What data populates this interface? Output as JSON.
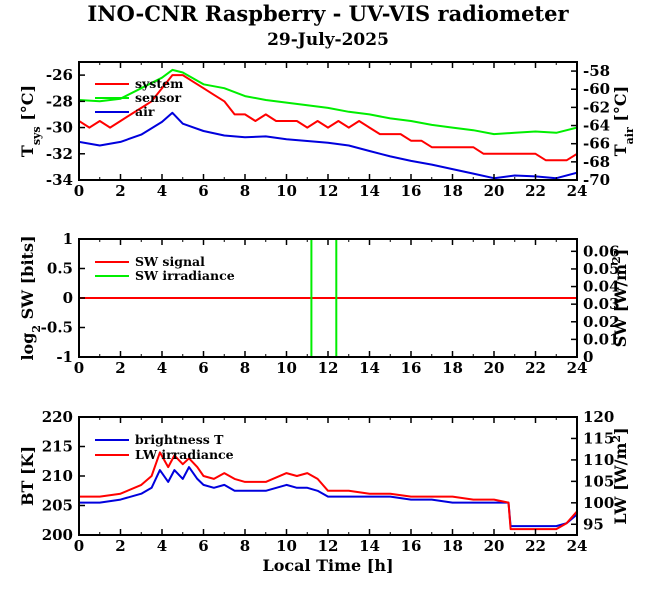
{
  "title": "INO-CNR Raspberry - UV-VIS radiometer",
  "subtitle": "29-July-2025",
  "colors": {
    "red": "#ff0000",
    "green": "#00ee00",
    "blue": "#0000dd",
    "frame": "#000000"
  },
  "chart_data": [
    {
      "type": "line",
      "xlabel": "",
      "ylabel": "T_sys [°C]",
      "ylabel_main": "T",
      "ylabel_sub": "sys",
      "ylabel_rest": " [°C]",
      "y2label": "T_air [°C]",
      "y2label_main": "T",
      "y2label_sub": "air",
      "y2label_rest": " [°C]",
      "xlim": [
        0,
        24
      ],
      "ylim": [
        -34,
        -25
      ],
      "y2lim": [
        -70,
        -57
      ],
      "xticks": [
        0,
        2,
        4,
        6,
        8,
        10,
        12,
        14,
        16,
        18,
        20,
        22,
        24
      ],
      "yticks": [
        -34,
        -32,
        -30,
        -28,
        -26
      ],
      "y2ticks": [
        -70,
        -68,
        -66,
        -64,
        -62,
        -60,
        -58
      ],
      "legend_position": "top-left",
      "series": [
        {
          "name": "system",
          "color": "#ff0000",
          "axis": "left",
          "x": [
            0,
            0.5,
            1,
            1.5,
            2,
            2.5,
            3,
            3.5,
            4,
            4.5,
            5,
            5.5,
            6,
            6.5,
            7,
            7.5,
            8,
            8.5,
            9,
            9.5,
            10,
            10.5,
            11,
            11.5,
            12,
            12.5,
            13,
            13.5,
            14,
            14.5,
            15,
            15.5,
            16,
            16.5,
            17,
            17.5,
            18,
            18.5,
            19,
            19.5,
            20,
            20.5,
            21,
            21.5,
            22,
            22.5,
            23,
            23.5,
            24
          ],
          "values": [
            -29.5,
            -30,
            -29.5,
            -30,
            -29.5,
            -29,
            -28.5,
            -28,
            -27,
            -26,
            -26,
            -26.5,
            -27,
            -27.5,
            -28,
            -29,
            -29,
            -29.5,
            -29,
            -29.5,
            -29.5,
            -29.5,
            -30,
            -29.5,
            -30,
            -29.5,
            -30,
            -29.5,
            -30,
            -30.5,
            -30.5,
            -30.5,
            -31,
            -31,
            -31.5,
            -31.5,
            -31.5,
            -31.5,
            -31.5,
            -32,
            -32,
            -32,
            -32,
            -32,
            -32,
            -32.5,
            -32.5,
            -32.5,
            -32
          ]
        },
        {
          "name": "sensor",
          "color": "#00ee00",
          "axis": "left",
          "x": [
            0,
            1,
            2,
            3,
            4,
            4.5,
            5,
            6,
            7,
            8,
            9,
            10,
            11,
            12,
            13,
            14,
            15,
            16,
            17,
            18,
            19,
            20,
            21,
            22,
            23,
            24
          ],
          "values": [
            -27.9,
            -28.0,
            -27.8,
            -27.0,
            -26.2,
            -25.6,
            -25.8,
            -26.7,
            -27.0,
            -27.6,
            -27.9,
            -28.1,
            -28.3,
            -28.5,
            -28.8,
            -29.0,
            -29.3,
            -29.5,
            -29.8,
            -30.0,
            -30.2,
            -30.5,
            -30.4,
            -30.3,
            -30.4,
            -30.0
          ]
        },
        {
          "name": "air",
          "color": "#0000dd",
          "axis": "right",
          "x": [
            0,
            1,
            2,
            3,
            4,
            4.5,
            5,
            6,
            7,
            8,
            9,
            10,
            11,
            12,
            13,
            14,
            15,
            16,
            17,
            18,
            19,
            20,
            21,
            22,
            23,
            24
          ],
          "values": [
            -65.8,
            -66.2,
            -65.8,
            -65.0,
            -63.6,
            -62.6,
            -63.8,
            -64.6,
            -65.1,
            -65.3,
            -65.2,
            -65.5,
            -65.7,
            -65.9,
            -66.2,
            -66.8,
            -67.4,
            -67.9,
            -68.3,
            -68.8,
            -69.3,
            -69.8,
            -69.5,
            -69.6,
            -69.8,
            -69.2
          ]
        }
      ]
    },
    {
      "type": "line",
      "xlabel": "",
      "ylabel": "log_2 SW [bits]",
      "ylabel_main": "log",
      "ylabel_sub": "2",
      "ylabel_rest": " SW [bits]",
      "y2label": "SW [W/m^2]",
      "y2label_main": "SW [W/m",
      "y2label_sup": "2",
      "y2label_rest": "]",
      "xlim": [
        0,
        24
      ],
      "ylim": [
        -1,
        1
      ],
      "y2lim": [
        0,
        0.067
      ],
      "xticks": [
        0,
        2,
        4,
        6,
        8,
        10,
        12,
        14,
        16,
        18,
        20,
        22,
        24
      ],
      "yticks": [
        -1,
        -0.5,
        0,
        0.5,
        1
      ],
      "yticklabels": [
        "-1",
        "-0.5",
        "0",
        "0.5",
        "1"
      ],
      "y2ticks": [
        0,
        0.01,
        0.02,
        0.03,
        0.04,
        0.05,
        0.06
      ],
      "y2ticklabels": [
        "0",
        "0.01",
        "0.02",
        "0.03",
        "0.04",
        "0.05",
        "0.06"
      ],
      "legend_position": "top-left",
      "series": [
        {
          "name": "SW signal",
          "color": "#ff0000",
          "axis": "left",
          "x": [
            0,
            24
          ],
          "values": [
            0,
            0
          ]
        },
        {
          "name": "SW irradiance",
          "color": "#00ee00",
          "axis": "left",
          "x": [
            0,
            11.2,
            11.2,
            12.4,
            12.4,
            24
          ],
          "values": [
            -1,
            -1,
            1,
            1,
            -1,
            -1
          ]
        }
      ]
    },
    {
      "type": "line",
      "xlabel": "Local Time [h]",
      "ylabel": "BT [K]",
      "y2label": "LW [W/m^2]",
      "y2label_main": "LW [W/m",
      "y2label_sup": "2",
      "y2label_rest": "]",
      "xlim": [
        0,
        24
      ],
      "ylim": [
        200,
        220
      ],
      "y2lim": [
        92.5,
        120
      ],
      "xticks": [
        0,
        2,
        4,
        6,
        8,
        10,
        12,
        14,
        16,
        18,
        20,
        22,
        24
      ],
      "yticks": [
        200,
        205,
        210,
        215,
        220
      ],
      "y2ticks": [
        95,
        100,
        105,
        110,
        115,
        120
      ],
      "legend_position": "top-left",
      "series": [
        {
          "name": "brightness T",
          "color": "#0000dd",
          "axis": "left",
          "x": [
            0,
            1,
            2,
            3,
            3.5,
            3.9,
            4.3,
            4.6,
            5.0,
            5.3,
            5.7,
            6.0,
            6.5,
            7.0,
            7.5,
            8,
            9,
            10,
            10.5,
            11,
            11.5,
            12,
            13,
            14,
            15,
            16,
            17,
            18,
            19,
            20,
            20.7,
            20.8,
            21,
            22,
            23,
            23.5,
            24
          ],
          "values": [
            205.5,
            205.5,
            206,
            207,
            208,
            211,
            209,
            211,
            209.5,
            211.5,
            209.5,
            208.5,
            208,
            208.5,
            207.5,
            207.5,
            207.5,
            208.5,
            208,
            208,
            207.5,
            206.5,
            206.5,
            206.5,
            206.5,
            206,
            206,
            205.5,
            205.5,
            205.5,
            205.5,
            201.5,
            201.5,
            201.5,
            201.5,
            202,
            203.5
          ]
        },
        {
          "name": "LW irradiance",
          "color": "#ff0000",
          "axis": "left",
          "x": [
            0,
            1,
            2,
            3,
            3.5,
            3.9,
            4.3,
            4.6,
            5.0,
            5.3,
            5.7,
            6.0,
            6.5,
            7.0,
            7.5,
            8,
            9,
            10,
            10.5,
            11,
            11.5,
            12,
            13,
            14,
            15,
            16,
            17,
            18,
            19,
            20,
            20.7,
            20.8,
            21,
            22,
            23,
            23.5,
            24
          ],
          "values": [
            206.5,
            206.5,
            207,
            208.5,
            210,
            214,
            211.5,
            213.5,
            212,
            213,
            211.5,
            210,
            209.5,
            210.5,
            209.5,
            209,
            209,
            210.5,
            210,
            210.5,
            209.5,
            207.5,
            207.5,
            207,
            207,
            206.5,
            206.5,
            206.5,
            206,
            206,
            205.5,
            201,
            201,
            201,
            201,
            202,
            204
          ]
        }
      ]
    }
  ]
}
